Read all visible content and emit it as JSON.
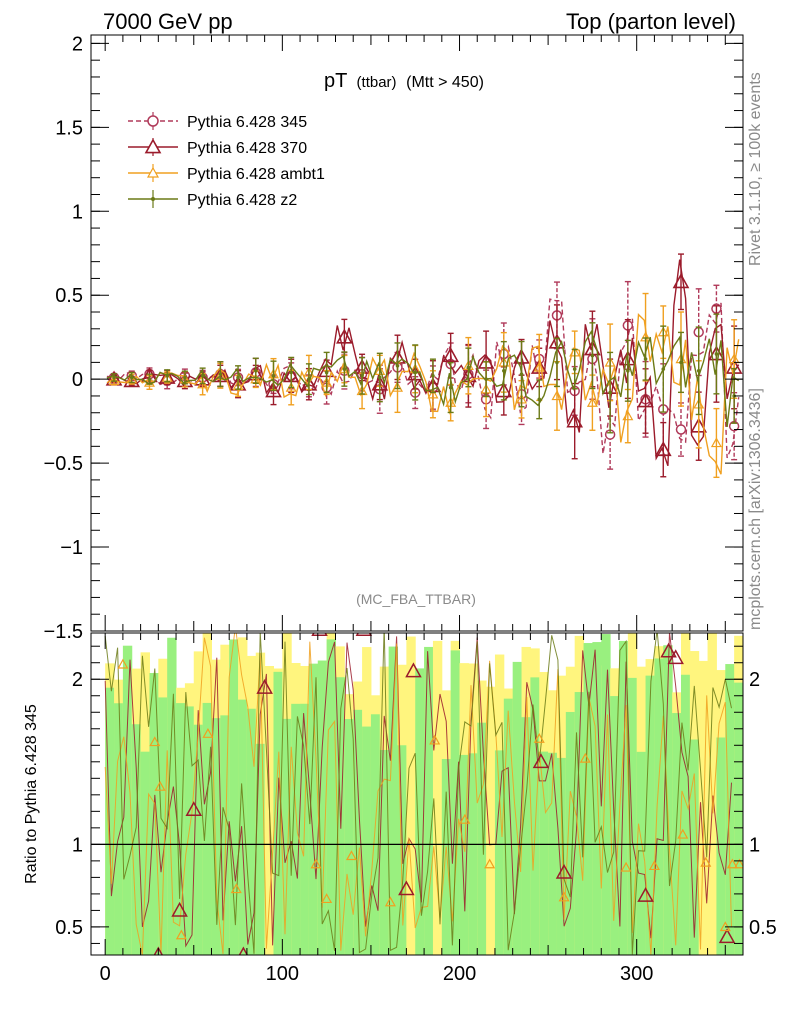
{
  "header": {
    "left": "7000 GeV pp",
    "right": "Top (parton level)"
  },
  "side": {
    "rivet": "Rivet 3.1.10, ≥ 100k events",
    "mcplots": "mcplots.cern.ch [arXiv:1306.3436]"
  },
  "colors": {
    "p345": "#b03a5a",
    "p370": "#9b1b2b",
    "ambt1": "#f0a020",
    "z2": "#6b7a16",
    "band_green": "#99f07f",
    "band_yellow": "#fff57e"
  },
  "chart_data": [
    {
      "type": "line",
      "title_main": "pT",
      "title_sub": "(ttbar)",
      "title_cut": "(Mtt > 450)",
      "analysis": "(MC_FBA_TTBAR)",
      "xlabel": "",
      "ylabel": "",
      "xlim": [
        -8,
        360
      ],
      "ylim": [
        -1.5,
        2.05
      ],
      "yticks": [
        -1.5,
        -1,
        -0.5,
        0,
        0.5,
        1,
        1.5,
        2
      ],
      "ytick_labels": [
        "−1.5",
        "−1",
        "−0.5",
        "0",
        "0.5",
        "1",
        "1.5",
        "2"
      ],
      "legend_position": "top-left",
      "series": [
        {
          "name": "Pythia 6.428 345",
          "style": "dashed",
          "marker": "circle",
          "x": [
            5,
            15,
            25,
            35,
            45,
            55,
            65,
            75,
            85,
            95,
            105,
            115,
            125,
            135,
            145,
            155,
            165,
            175,
            185,
            195,
            205,
            215,
            225,
            235,
            245,
            255,
            265,
            275,
            285,
            295,
            305,
            315,
            325,
            335,
            345,
            355
          ],
          "y": [
            0.01,
            0.02,
            0.03,
            -0.01,
            0.02,
            0.01,
            0.03,
            0.01,
            0.04,
            -0.03,
            0.02,
            -0.04,
            -0.05,
            0.05,
            0.03,
            -0.06,
            0.07,
            -0.08,
            -0.05,
            0.09,
            0.03,
            -0.12,
            0.15,
            -0.09,
            0.12,
            0.38,
            -0.07,
            0.12,
            -0.33,
            0.32,
            -0.12,
            -0.18,
            -0.3,
            0.28,
            0.42,
            -0.28
          ]
        },
        {
          "name": "Pythia 6.428 370",
          "style": "solid",
          "marker": "triangle-open",
          "x": [
            5,
            15,
            25,
            35,
            45,
            55,
            65,
            75,
            85,
            95,
            105,
            115,
            125,
            135,
            145,
            155,
            165,
            175,
            185,
            195,
            205,
            215,
            225,
            235,
            245,
            255,
            265,
            275,
            285,
            295,
            305,
            315,
            325,
            335,
            345,
            355
          ],
          "y": [
            0.0,
            -0.01,
            0.02,
            0.01,
            -0.01,
            0.0,
            0.02,
            -0.03,
            0.03,
            -0.07,
            0.02,
            -0.03,
            0.05,
            0.25,
            0.07,
            -0.03,
            0.13,
            0.03,
            -0.04,
            0.14,
            0.02,
            0.1,
            -0.07,
            0.13,
            0.07,
            0.22,
            -0.25,
            0.18,
            -0.05,
            0.12,
            -0.13,
            -0.42,
            0.58,
            -0.28,
            0.15,
            0.07
          ]
        },
        {
          "name": "Pythia 6.428 ambt1",
          "style": "solid",
          "marker": "triangle-small",
          "x": [
            5,
            15,
            25,
            35,
            45,
            55,
            65,
            75,
            85,
            95,
            105,
            115,
            125,
            135,
            145,
            155,
            165,
            175,
            185,
            195,
            205,
            215,
            225,
            235,
            245,
            255,
            265,
            275,
            285,
            295,
            305,
            315,
            325,
            335,
            345,
            355
          ],
          "y": [
            -0.01,
            0.0,
            -0.02,
            0.01,
            0.0,
            -0.03,
            0.02,
            -0.04,
            0.0,
            0.03,
            -0.05,
            0.04,
            -0.02,
            0.06,
            -0.07,
            0.05,
            -0.05,
            0.06,
            -0.09,
            -0.14,
            0.08,
            -0.06,
            0.1,
            -0.12,
            0.07,
            -0.1,
            0.16,
            -0.14,
            0.1,
            -0.22,
            0.25,
            0.28,
            0.12,
            -0.15,
            -0.38,
            0.12
          ]
        },
        {
          "name": "Pythia 6.428 z2",
          "style": "solid",
          "marker": "dot",
          "x": [
            5,
            15,
            25,
            35,
            45,
            55,
            65,
            75,
            85,
            95,
            105,
            115,
            125,
            135,
            145,
            155,
            165,
            175,
            185,
            195,
            205,
            215,
            225,
            235,
            245,
            255,
            265,
            275,
            285,
            295,
            305,
            315,
            325,
            335,
            345,
            355
          ],
          "y": [
            0.01,
            0.01,
            0.0,
            0.02,
            0.01,
            0.02,
            0.03,
            0.01,
            0.05,
            0.02,
            0.04,
            0.0,
            0.04,
            0.06,
            0.02,
            0.01,
            0.08,
            0.04,
            0.02,
            -0.05,
            0.07,
            0.0,
            0.05,
            0.03,
            -0.12,
            0.1,
            0.06,
            0.14,
            -0.08,
            0.05,
            0.12,
            0.06,
            0.1,
            0.05,
            0.15,
            -0.1
          ]
        }
      ]
    },
    {
      "type": "line",
      "ylabel": "Ratio to Pythia 6.428 345",
      "xlim": [
        -8,
        360
      ],
      "ylim": [
        0.33,
        2.28
      ],
      "yticks": [
        0.5,
        1,
        2
      ],
      "ytick_labels": [
        "0.5",
        "1",
        "2"
      ],
      "xticks": [
        0,
        100,
        200,
        300
      ],
      "xtick_labels": [
        "0",
        "100",
        "200",
        "300"
      ],
      "reference": 1,
      "series": [
        {
          "name": "Pythia 6.428 370",
          "x": [
            30,
            42,
            50,
            78,
            90,
            121,
            146,
            170,
            174,
            246,
            259,
            305,
            318,
            322,
            351
          ],
          "y": [
            0.33,
            0.6,
            1.21,
            0.33,
            1.95,
            2.3,
            2.3,
            0.73,
            2.05,
            1.5,
            0.83,
            0.69,
            2.17,
            2.13,
            0.44
          ]
        },
        {
          "name": "Pythia 6.428 ambt1",
          "x": [
            10,
            28,
            31,
            43,
            58,
            74,
            119,
            125,
            139,
            161,
            186,
            203,
            217,
            245,
            259,
            271,
            294,
            310,
            326,
            339,
            350,
            354,
            358
          ],
          "y": [
            2.09,
            1.62,
            1.35,
            0.45,
            1.67,
            0.73,
            0.88,
            0.67,
            0.93,
            0.65,
            1.63,
            1.15,
            0.88,
            1.64,
            0.68,
            1.52,
            0.86,
            0.87,
            1.06,
            0.89,
            0.5,
            0.88,
            0.88
          ]
        }
      ]
    }
  ]
}
